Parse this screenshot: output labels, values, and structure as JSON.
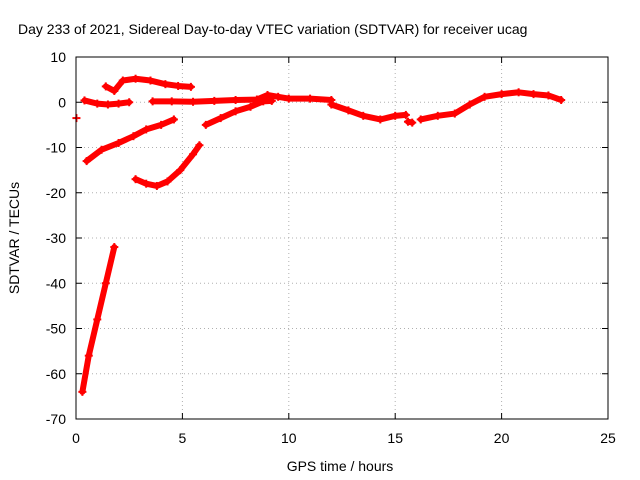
{
  "chart_data": {
    "type": "scatter",
    "title": "Day 233 of 2021, Sidereal Day-to-day VTEC variation (SDTVAR) for receiver ucag",
    "xlabel": "GPS time / hours",
    "ylabel": "SDTVAR / TECUs",
    "xlim": [
      0,
      25
    ],
    "ylim": [
      -70,
      10
    ],
    "x_ticks": [
      0,
      5,
      10,
      15,
      20,
      25
    ],
    "y_ticks": [
      10,
      0,
      -10,
      -20,
      -30,
      -40,
      -50,
      -60,
      -70
    ],
    "grid": true,
    "marker": "+",
    "series": [
      {
        "name": "SDTVAR",
        "color": "#ff0000",
        "segments": [
          [
            [
              0.3,
              -64
            ],
            [
              0.6,
              -56
            ],
            [
              1.0,
              -48
            ],
            [
              1.4,
              -40
            ],
            [
              1.8,
              -32
            ]
          ],
          [
            [
              0.5,
              -13
            ],
            [
              1.2,
              -10.5
            ],
            [
              2.0,
              -9
            ],
            [
              2.7,
              -7.5
            ],
            [
              3.3,
              -6
            ],
            [
              4.0,
              -5
            ],
            [
              4.6,
              -3.8
            ]
          ],
          [
            [
              2.8,
              -17
            ],
            [
              3.3,
              -18
            ],
            [
              3.8,
              -18.5
            ],
            [
              4.3,
              -17.5
            ],
            [
              4.9,
              -15
            ],
            [
              5.5,
              -11.5
            ],
            [
              5.8,
              -9.5
            ]
          ],
          [
            [
              0.4,
              0.4
            ],
            [
              1.0,
              -0.3
            ],
            [
              1.5,
              -0.5
            ],
            [
              2.0,
              -0.3
            ],
            [
              2.5,
              0
            ]
          ],
          [
            [
              1.4,
              3.5
            ],
            [
              1.8,
              2.5
            ],
            [
              2.2,
              4.8
            ],
            [
              2.8,
              5.2
            ],
            [
              3.5,
              4.8
            ],
            [
              4.2,
              4
            ],
            [
              4.8,
              3.6
            ],
            [
              5.4,
              3.4
            ]
          ],
          [
            [
              3.6,
              0.2
            ],
            [
              4.5,
              0.2
            ],
            [
              5.5,
              0.1
            ],
            [
              6.5,
              0.3
            ],
            [
              7.5,
              0.5
            ],
            [
              8.5,
              0.6
            ],
            [
              9.0,
              1.6
            ],
            [
              9.5,
              1.2
            ],
            [
              10.0,
              0.8
            ],
            [
              11.0,
              0.8
            ],
            [
              12.0,
              0.5
            ]
          ],
          [
            [
              6.1,
              -5
            ],
            [
              6.8,
              -3.5
            ],
            [
              7.5,
              -2
            ],
            [
              8.2,
              -1
            ],
            [
              8.8,
              0.2
            ],
            [
              9.2,
              0.3
            ]
          ],
          [
            [
              12.0,
              -0.5
            ],
            [
              12.8,
              -1.8
            ],
            [
              13.5,
              -3
            ],
            [
              14.3,
              -3.8
            ],
            [
              15.0,
              -3
            ],
            [
              15.5,
              -2.8
            ]
          ],
          [
            [
              15.6,
              -4.3
            ],
            [
              15.8,
              -4.5
            ]
          ],
          [
            [
              16.2,
              -3.8
            ],
            [
              17.0,
              -3
            ],
            [
              17.8,
              -2.5
            ],
            [
              18.5,
              -0.5
            ],
            [
              19.2,
              1.2
            ],
            [
              20.0,
              1.8
            ],
            [
              20.8,
              2.2
            ],
            [
              21.5,
              1.8
            ],
            [
              22.2,
              1.5
            ],
            [
              22.8,
              0.5
            ]
          ],
          [
            [
              0.02,
              -3.5
            ]
          ]
        ]
      }
    ]
  }
}
